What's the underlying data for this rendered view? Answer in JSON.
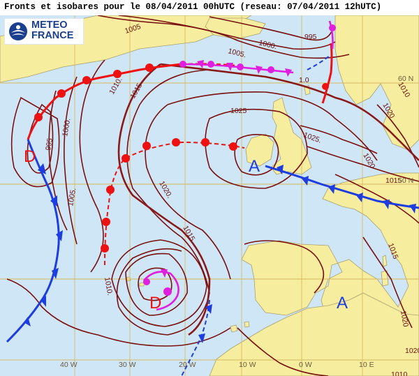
{
  "header": {
    "title": "Fronts et isobares pour le 08/04/2011 00hUTC (reseau: 07/04/2011 12hUTC)"
  },
  "logo": {
    "line1": "METEO",
    "line2": "FRANCE"
  },
  "colors": {
    "sea": "#cfe6f6",
    "land": "#f6ee9e",
    "grid": "#d8b860",
    "isobar": "#7a1010",
    "isobar_main": "#8a1a1a",
    "warm_front": "#ee1111",
    "cold_front": "#1d3de0",
    "occlusion": "#e01ee0",
    "low_label": "#ee1111",
    "high_label": "#1d3de0"
  },
  "isobar_labels": [
    "1005",
    "1000.",
    "995",
    "1005.",
    "1010.",
    "1015",
    "1025",
    "1000.",
    "995",
    "1005.",
    "1020.",
    "1015",
    "1025.",
    "1020",
    "1010",
    "1020",
    "1015",
    "1010.",
    "1015",
    "1020",
    "1020",
    "1010",
    "1.0"
  ],
  "pressure_centers": [
    {
      "type": "D",
      "kind": "low"
    },
    {
      "type": "A",
      "kind": "high"
    },
    {
      "type": "D",
      "kind": "low"
    },
    {
      "type": "A",
      "kind": "high"
    }
  ],
  "longitude_labels": [
    "40 W",
    "30 W",
    "20 W",
    "10 W",
    "0 W",
    "10 E"
  ],
  "latitude_labels": [
    "60 N",
    "50 N"
  ],
  "icons": {
    "logo": "meteo-france-logo-icon"
  }
}
